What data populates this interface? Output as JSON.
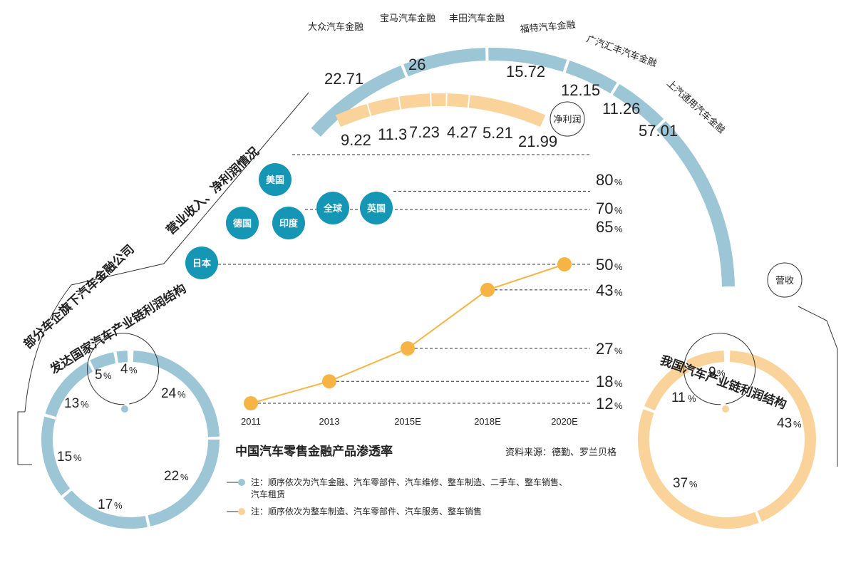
{
  "title_side": "部分车企旗下汽车金融公司",
  "title_side2": "营业收入、净利润情况",
  "revenue_label": "营收",
  "profit_label": "净利润",
  "companies": [
    "大众汽车金融",
    "宝马汽车金融",
    "丰田汽车金融",
    "福特汽车金融",
    "广汽汇丰汽车金融",
    "上汽通用汽车金融"
  ],
  "revenue_values": [
    "22.71",
    "26",
    "15.72",
    "12.15",
    "11.26",
    "57.01"
  ],
  "profit_values": [
    "9.22",
    "11.3",
    "7.23",
    "4.27",
    "5.21",
    "21.99"
  ],
  "country_bubbles": [
    "美国",
    "英国",
    "全球",
    "印度",
    "德国",
    "日本"
  ],
  "country_values": [
    "80",
    "70",
    "65",
    "50"
  ],
  "pct_sign": "%",
  "chart_title": "中国汽车零售金融产品渗透率",
  "source": "资料来源：德勤、罗兰贝格",
  "chart_data": {
    "type": "line",
    "title": "中国汽车零售金融产品渗透率",
    "x": [
      "2011",
      "2013",
      "2015E",
      "2018E",
      "2020E"
    ],
    "series": [
      {
        "values": [
          12,
          18,
          27,
          43,
          50
        ],
        "value_labels": [
          "12",
          "18",
          "27",
          "43",
          "50"
        ]
      }
    ],
    "reference_lines": [
      {
        "label": "美国",
        "value": 80
      },
      {
        "label": "英国",
        "value": 70
      },
      {
        "label": "全球",
        "value": 70
      },
      {
        "label": "印度",
        "value": 65
      },
      {
        "label": "德国",
        "value": 65
      },
      {
        "label": "日本",
        "value": 50
      }
    ],
    "ylim": [
      10,
      82
    ],
    "grid": false
  },
  "developed": {
    "title": "发达国家汽车产业链利润结构",
    "values": [
      "24",
      "22",
      "17",
      "15",
      "13",
      "5",
      "4"
    ]
  },
  "china": {
    "title": "我国汽车产业链利润结构",
    "values": [
      "43",
      "37",
      "11",
      "9"
    ]
  },
  "notes": {
    "blue": "注：顺序依次为汽车金融、汽车零部件、汽车维修、整车制造、二手车、整车销售、",
    "blue2": "汽车租赁",
    "orange": "注：顺序依次为整车制造、汽车零部件、汽车服务、整车销售"
  },
  "colors": {
    "blue": "#9cc6d6",
    "orange": "#fad39a",
    "teal": "#1496b4",
    "line": "#f6b444"
  }
}
